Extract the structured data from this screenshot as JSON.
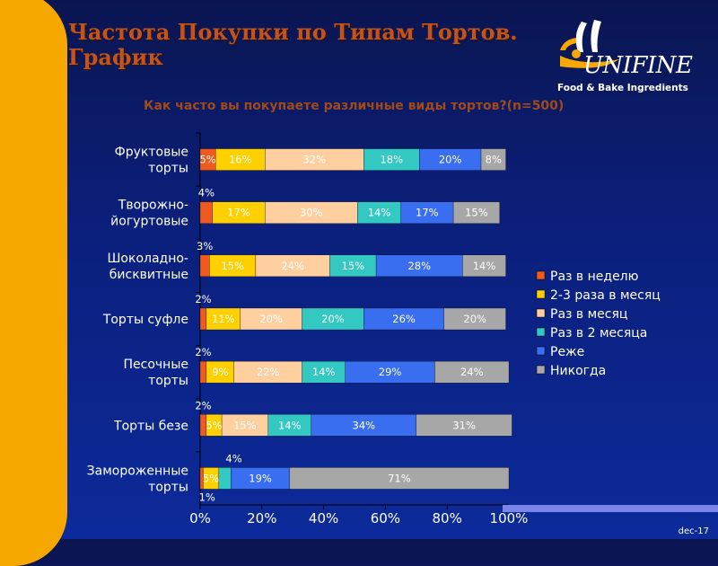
{
  "slide": {
    "title": "Частота Покупки по Типам Тортов.\n График",
    "subtitle": "Как часто вы покупаете различные виды тортов?(n=500)",
    "logo_name": "UNIFINE",
    "logo_tagline": "Food & Bake Ingredients",
    "date": "dec-17"
  },
  "chart_data": {
    "type": "bar",
    "orientation": "horizontal",
    "stacked": true,
    "title": "",
    "xlim": [
      0,
      100
    ],
    "x_ticks": [
      "0%",
      "20%",
      "40%",
      "60%",
      "80%",
      "100%"
    ],
    "legend_position": "right",
    "grid": false,
    "categories": [
      "Фруктовые торты",
      "Творожно-йогуртовые",
      "Шоколадно-бисквитные",
      "Торты суфле",
      "Песочные торты",
      "Торты безе",
      "Замороженные торты"
    ],
    "series": [
      {
        "name": "Раз в неделю",
        "color": "#f05a1e",
        "values": [
          5,
          4,
          3,
          2,
          2,
          2,
          1
        ]
      },
      {
        "name": "2-3 раза в месяц",
        "color": "#ffd000",
        "values": [
          16,
          17,
          15,
          11,
          9,
          5,
          5
        ]
      },
      {
        "name": "Раз в месяц",
        "color": "#ffcfa0",
        "values": [
          32,
          30,
          24,
          20,
          22,
          15,
          0
        ]
      },
      {
        "name": "Раз в 2 месяца",
        "color": "#33c9c2",
        "values": [
          18,
          14,
          15,
          20,
          14,
          14,
          4
        ]
      },
      {
        "name": "Реже",
        "color": "#3a6ef0",
        "values": [
          20,
          17,
          28,
          26,
          29,
          34,
          19
        ]
      },
      {
        "name": "Никогда",
        "color": "#a7a7a7",
        "values": [
          8,
          15,
          14,
          20,
          24,
          31,
          71
        ]
      }
    ]
  }
}
